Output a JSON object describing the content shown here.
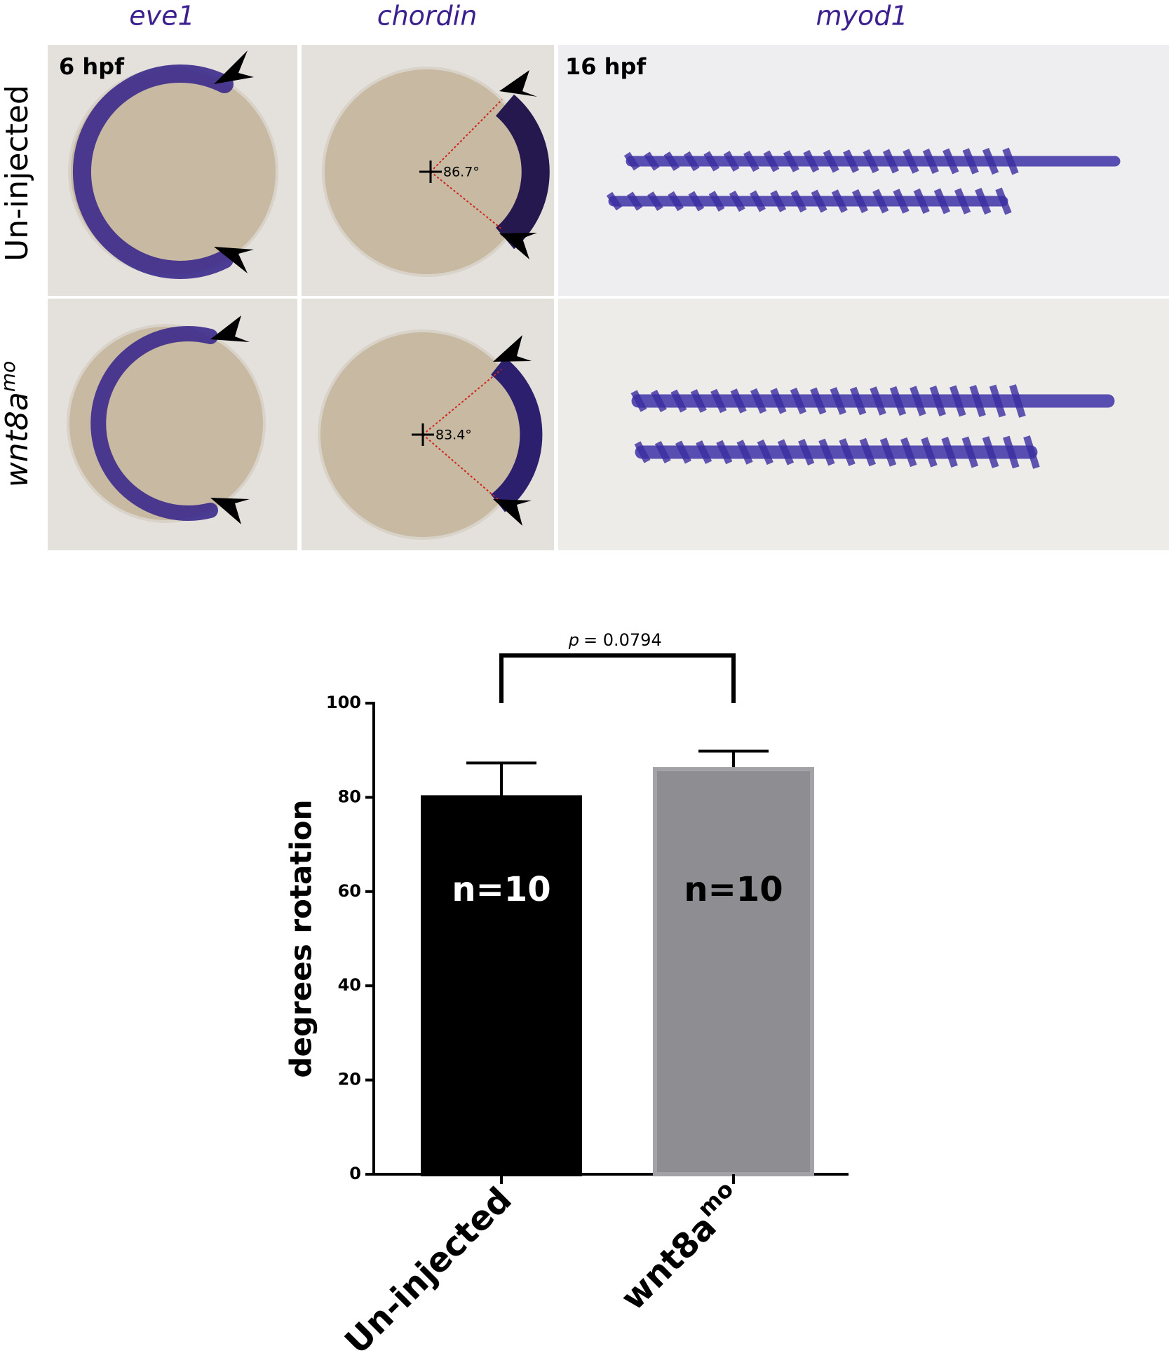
{
  "panels": {
    "column_labels": [
      "eve1",
      "chordin",
      "myod1"
    ],
    "row_labels": [
      {
        "text": "Un-injected"
      },
      {
        "text": "wnt8a",
        "sup": "mo"
      }
    ],
    "stage_labels": [
      "6 hpf",
      "16 hpf"
    ],
    "angles": [
      "86.7°",
      "83.4°"
    ]
  },
  "chart_data": {
    "type": "bar",
    "categories": [
      "Un-injected",
      "wnt8a"
    ],
    "category_superscripts": [
      null,
      "mo"
    ],
    "series": [
      {
        "values": [
          80,
          86
        ],
        "errors": [
          7.3,
          3.8
        ],
        "colors": [
          "#000000",
          "#8e8d92"
        ],
        "annotations": [
          "n=10",
          "n=10"
        ]
      }
    ],
    "ylabel": "degrees rotation",
    "ylim": [
      0,
      100
    ],
    "yticks": [
      0,
      20,
      40,
      60,
      80,
      100
    ],
    "significance": {
      "symbol": "p",
      "text": "= 0.0794"
    }
  }
}
